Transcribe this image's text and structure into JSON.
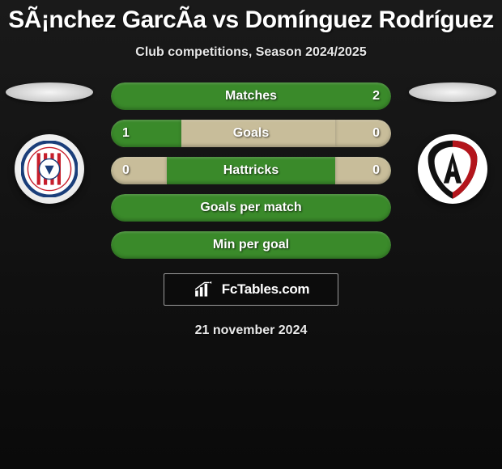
{
  "title": "SÃ¡nchez GarcÃ­a vs Domínguez Rodríguez",
  "subtitle": "Club competitions, Season 2024/2025",
  "date": "21 november 2024",
  "brand": "FcTables.com",
  "colors": {
    "green": "#3a8a2a",
    "green_dark": "#2e7320",
    "beige": "#c8bd9a",
    "background_top": "#1a1a1a",
    "background_bottom": "#0a0a0a",
    "text": "#ffffff"
  },
  "players": {
    "left": {
      "name": "Sánchez García",
      "club": "CD Guadalajara",
      "logo_colors": {
        "ring": "#1a3e7a",
        "stripes_red": "#c71e2b",
        "white": "#ffffff"
      }
    },
    "right": {
      "name": "Domínguez Rodríguez",
      "club": "Atlas",
      "logo_colors": {
        "shield_black": "#111111",
        "shield_red": "#b3151c",
        "white": "#ffffff"
      }
    }
  },
  "rows": [
    {
      "label": "Matches",
      "left_value": "",
      "right_value": "2",
      "left_fill_pct": 0,
      "right_fill_pct": 100,
      "left_fill_color": "#3a8a2a",
      "right_fill_color": "#3a8a2a",
      "base_color": "#c8bd9a"
    },
    {
      "label": "Goals",
      "left_value": "1",
      "right_value": "0",
      "left_fill_pct": 25,
      "right_fill_pct": 20,
      "left_fill_color": "#3a8a2a",
      "right_fill_color": "#c8bd9a",
      "base_color": "#c8bd9a"
    },
    {
      "label": "Hattricks",
      "left_value": "0",
      "right_value": "0",
      "left_fill_pct": 20,
      "right_fill_pct": 20,
      "left_fill_color": "#c8bd9a",
      "right_fill_color": "#c8bd9a",
      "base_color": "#3a8a2a"
    },
    {
      "label": "Goals per match",
      "left_value": "",
      "right_value": "",
      "left_fill_pct": 0,
      "right_fill_pct": 0,
      "left_fill_color": "#3a8a2a",
      "right_fill_color": "#3a8a2a",
      "base_color": "#3a8a2a"
    },
    {
      "label": "Min per goal",
      "left_value": "",
      "right_value": "",
      "left_fill_pct": 0,
      "right_fill_pct": 0,
      "left_fill_color": "#3a8a2a",
      "right_fill_color": "#3a8a2a",
      "base_color": "#3a8a2a"
    }
  ]
}
